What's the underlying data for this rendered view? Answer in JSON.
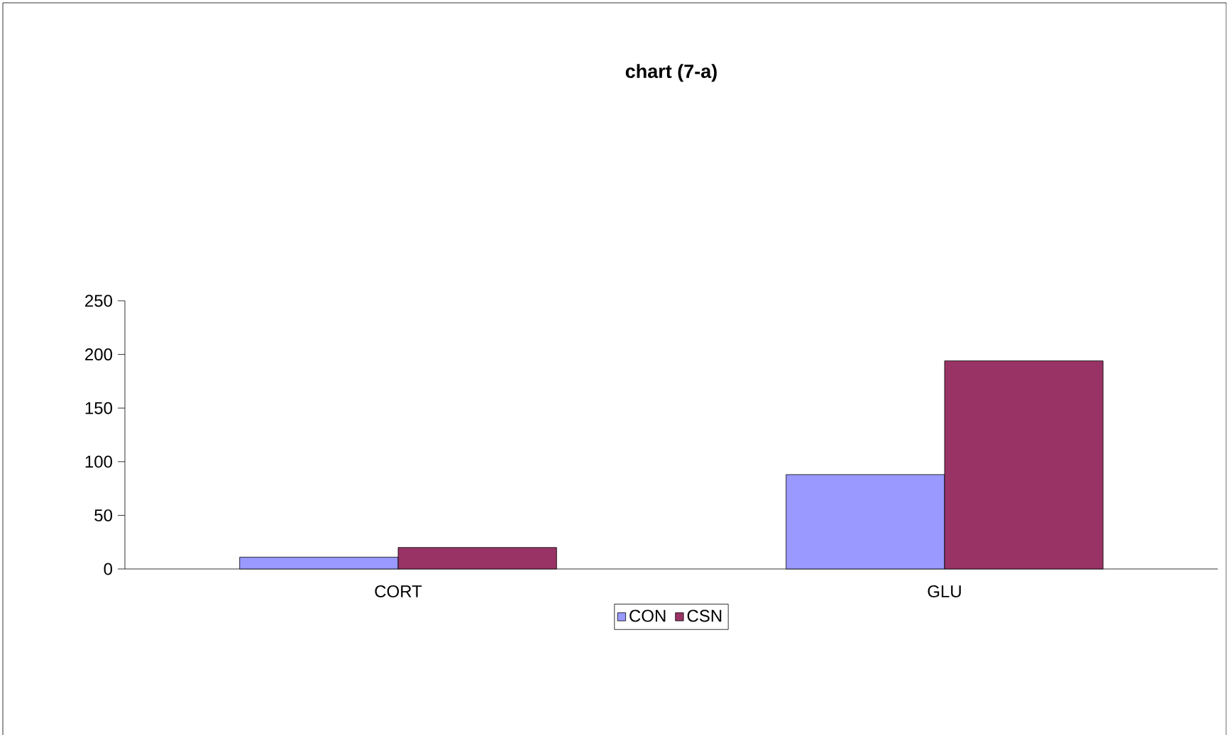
{
  "chart_data": {
    "type": "bar",
    "title": "chart (7-a)",
    "categories": [
      "CORT",
      "GLU"
    ],
    "series": [
      {
        "name": "CON",
        "color": "#9999ff",
        "values": [
          11,
          88
        ]
      },
      {
        "name": "CSN",
        "color": "#993366",
        "values": [
          20,
          194
        ]
      }
    ],
    "ylim": [
      0,
      250
    ],
    "yticks": [
      0,
      50,
      100,
      150,
      200,
      250
    ],
    "grid": false,
    "legend": "bottom"
  }
}
